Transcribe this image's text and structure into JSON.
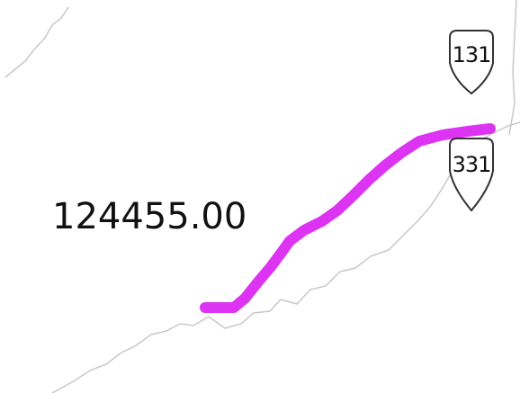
{
  "map": {
    "route_label": "124455.00",
    "shields": [
      {
        "label": "131"
      },
      {
        "label": "331"
      }
    ]
  }
}
